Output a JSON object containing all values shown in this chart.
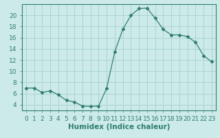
{
  "x": [
    0,
    1,
    2,
    3,
    4,
    5,
    6,
    7,
    8,
    9,
    10,
    11,
    12,
    13,
    14,
    15,
    16,
    17,
    18,
    19,
    20,
    21,
    22,
    23
  ],
  "y": [
    7.0,
    7.0,
    6.2,
    6.5,
    5.8,
    4.8,
    4.5,
    3.8,
    3.7,
    3.8,
    7.0,
    13.5,
    17.5,
    20.0,
    21.2,
    21.3,
    19.5,
    17.5,
    16.5,
    16.5,
    16.2,
    15.2,
    12.8,
    11.7
  ],
  "line_color": "#2e7d6e",
  "marker": "D",
  "marker_size": 2.5,
  "bg_color": "#cceae8",
  "grid_color": "#aad4d0",
  "xlabel": "Humidex (Indice chaleur)",
  "ylim": [
    3,
    22
  ],
  "xlim": [
    -0.5,
    23.5
  ],
  "yticks": [
    4,
    6,
    8,
    10,
    12,
    14,
    16,
    18,
    20
  ],
  "xticks": [
    0,
    1,
    2,
    3,
    4,
    5,
    6,
    7,
    8,
    9,
    10,
    11,
    12,
    13,
    14,
    15,
    16,
    17,
    18,
    19,
    20,
    21,
    22,
    23
  ],
  "tick_label_fontsize": 6.5,
  "xlabel_fontsize": 7.5
}
